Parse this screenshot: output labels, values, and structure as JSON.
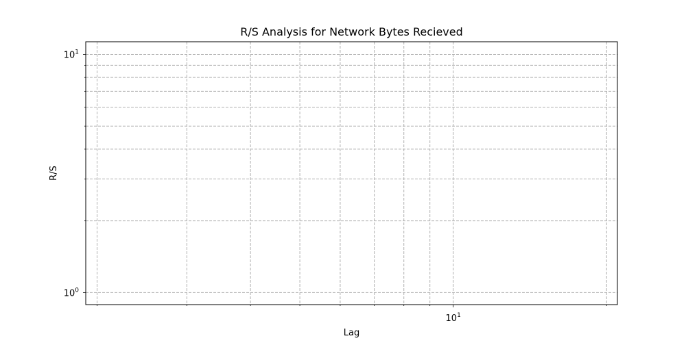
{
  "chart_data": {
    "type": "line",
    "title": "R/S Analysis for Network Bytes Recieved",
    "xlabel": "Lag",
    "ylabel": "R/S",
    "x_scale": "log",
    "y_scale": "log",
    "xlim": [
      1.9,
      21
    ],
    "ylim": [
      0.89,
      11.3
    ],
    "grid": true,
    "grid_style": "dashed",
    "x_ticks": [
      {
        "value": 10,
        "label": "10",
        "exp": "1"
      }
    ],
    "y_ticks": [
      {
        "value": 1,
        "label": "10",
        "exp": "0"
      },
      {
        "value": 10,
        "label": "10",
        "exp": "1"
      }
    ],
    "x_minor_ticks": [
      2,
      3,
      4,
      5,
      6,
      7,
      8,
      9,
      20
    ],
    "y_minor_ticks": [
      2,
      3,
      4,
      5,
      6,
      7,
      8,
      9
    ],
    "series": [],
    "colors": {
      "grid": "#b0b0b0",
      "axes": "#000000",
      "background": "#ffffff"
    }
  }
}
